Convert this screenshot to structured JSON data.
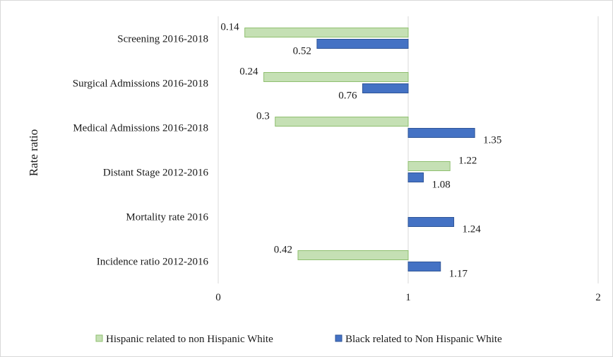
{
  "chart_data": {
    "type": "bar",
    "orientation": "horizontal",
    "ylabel": "Rate ratio",
    "xlabel": "",
    "xlim": [
      0,
      2
    ],
    "x_ticks": [
      "0",
      "1",
      "2"
    ],
    "grid": "vertical",
    "legend_position": "bottom",
    "categories": [
      "Screening 2016-2018",
      "Surgical Admissions 2016-2018",
      "Medical Admissions 2016-2018",
      "Distant Stage 2012-2016",
      "Mortality rate 2016",
      "Incidence ratio 2012-2016"
    ],
    "series": [
      {
        "name": "Hispanic related to non Hispanic White",
        "color": "#c5e0b4",
        "border": "#8fbf6f",
        "values": [
          0.14,
          0.24,
          0.3,
          1.22,
          null,
          0.42
        ],
        "labels": [
          "0.14",
          "0.24",
          "0.3",
          "1.22",
          "",
          "0.42"
        ]
      },
      {
        "name": "Black related to Non Hispanic White",
        "color": "#4472c4",
        "border": "#2f5597",
        "values": [
          0.52,
          0.76,
          1.35,
          1.08,
          1.24,
          1.17
        ],
        "labels": [
          "0.52",
          "0.76",
          "1.35",
          "1.08",
          "1.24",
          "1.17"
        ]
      }
    ]
  }
}
